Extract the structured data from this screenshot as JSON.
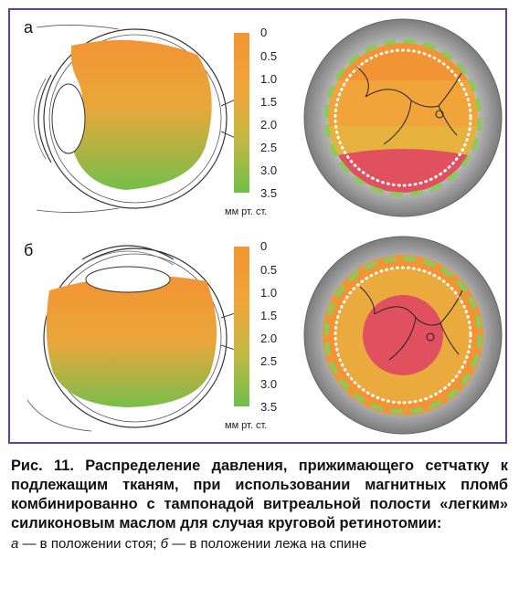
{
  "panels": [
    {
      "label": "а",
      "scale_ticks": [
        "0",
        "0.5",
        "1.0",
        "1.5",
        "2.0",
        "2.5",
        "3.0",
        "3.5"
      ],
      "units": "мм рт. ст."
    },
    {
      "label": "б",
      "scale_ticks": [
        "0",
        "0.5",
        "1.0",
        "1.5",
        "2.0",
        "2.5",
        "3.0",
        "3.5"
      ],
      "units": "мм рт. ст."
    }
  ],
  "caption": {
    "prefix": "Рис. 11.",
    "text": " Распределение давления, прижимающего сетчатку к подлежащим тканям, при использовании магнитных пломб комбинированно с тампонадой витреальной полости «легким» силиконовым маслом для случая круговой ретинотомии:",
    "legend_a_letter": "а",
    "legend_a_text": " — в положении стоя; ",
    "legend_b_letter": "б",
    "legend_b_text": " — в положении лежа на спине"
  },
  "colors": {
    "frame": "#6b3f8e",
    "orange": "#f29433",
    "green": "#6fbe4a",
    "red": "#e0505f",
    "gray": "#8a8a8a",
    "dash_green": "#8cc85a"
  }
}
